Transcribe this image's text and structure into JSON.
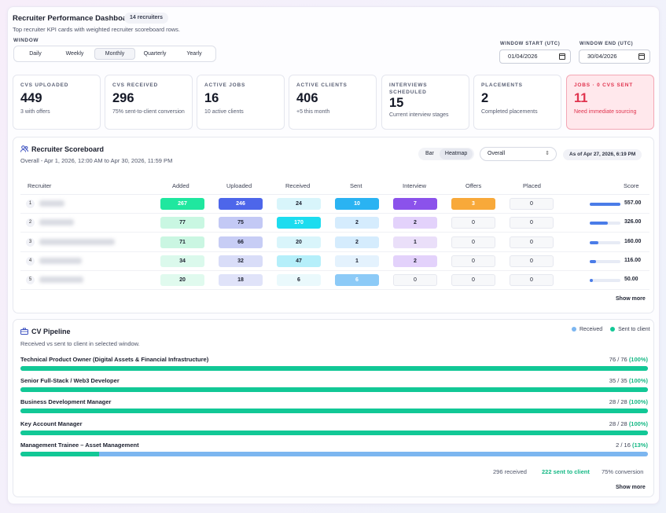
{
  "header": {
    "title": "Recruiter Performance Dashboard",
    "badge": "14 recruiters",
    "subtitle": "Top recruiter KPI cards with weighted recruiter scoreboard rows."
  },
  "window": {
    "label": "WINDOW",
    "options": [
      "Daily",
      "Weekly",
      "Monthly",
      "Quarterly",
      "Yearly"
    ],
    "selected": "Monthly"
  },
  "dates": {
    "start_label": "WINDOW START (UTC)",
    "start_value": "01/04/2026",
    "end_label": "WINDOW END (UTC)",
    "end_value": "30/04/2026"
  },
  "kpis": [
    {
      "label": "CVS UPLOADED",
      "value": "449",
      "sub": "3 with offers"
    },
    {
      "label": "CVS RECEIVED",
      "value": "296",
      "sub": "75% sent-to-client conversion"
    },
    {
      "label": "ACTIVE JOBS",
      "value": "16",
      "sub": "10 active clients"
    },
    {
      "label": "ACTIVE CLIENTS",
      "value": "406",
      "sub": "+5 this month"
    },
    {
      "label": "INTERVIEWS SCHEDULED",
      "value": "15",
      "sub": "Current interview stages"
    },
    {
      "label": "PLACEMENTS",
      "value": "2",
      "sub": "Completed placements"
    },
    {
      "label": "JOBS · 0 CVS SENT",
      "value": "11",
      "sub": "Need immediate sourcing",
      "alert": true
    }
  ],
  "scoreboard": {
    "title": "Recruiter Scoreboard",
    "subtitle": "Overall - Apr 1, 2026, 12:00 AM to Apr 30, 2026, 11:59 PM",
    "toggle": [
      "Bar",
      "Heatmap"
    ],
    "toggle_selected": "Heatmap",
    "select_value": "Overall",
    "as_of": "As of Apr 27, 2026, 6:19 PM",
    "columns": [
      "Recruiter",
      "Added",
      "Uploaded",
      "Received",
      "Sent",
      "Interview",
      "Offers",
      "Placed",
      "Score"
    ],
    "rows": [
      {
        "rank": "1",
        "cells": [
          "267",
          "246",
          "24",
          "10",
          "7",
          "3",
          "0"
        ],
        "score": "557.00",
        "score_frac": 1.0
      },
      {
        "rank": "2",
        "cells": [
          "77",
          "75",
          "170",
          "2",
          "2",
          "0",
          "0"
        ],
        "score": "326.00",
        "score_frac": 0.585
      },
      {
        "rank": "3",
        "cells": [
          "71",
          "66",
          "20",
          "2",
          "1",
          "0",
          "0"
        ],
        "score": "160.00",
        "score_frac": 0.287
      },
      {
        "rank": "4",
        "cells": [
          "34",
          "32",
          "47",
          "1",
          "2",
          "0",
          "0"
        ],
        "score": "116.00",
        "score_frac": 0.208
      },
      {
        "rank": "5",
        "cells": [
          "20",
          "18",
          "6",
          "6",
          "0",
          "0",
          "0"
        ],
        "score": "50.00",
        "score_frac": 0.09
      }
    ],
    "show_more": "Show more"
  },
  "pipeline": {
    "title": "CV Pipeline",
    "subtitle": "Received vs sent to client in selected window.",
    "legend": [
      {
        "label": "Received",
        "color": "#7cb6f0"
      },
      {
        "label": "Sent to client",
        "color": "#12c896"
      }
    ],
    "jobs": [
      {
        "name": "Technical Product Owner (Digital Assets & Financial Infrastructure)",
        "ratio": "76 / 76",
        "pct": "(100%)",
        "sent": 76,
        "received": 76
      },
      {
        "name": "Senior Full-Stack / Web3 Developer",
        "ratio": "35 / 35",
        "pct": "(100%)",
        "sent": 35,
        "received": 35
      },
      {
        "name": "Business Development Manager",
        "ratio": "28 / 28",
        "pct": "(100%)",
        "sent": 28,
        "received": 28
      },
      {
        "name": "Key Account Manager",
        "ratio": "28 / 28",
        "pct": "(100%)",
        "sent": 28,
        "received": 28
      },
      {
        "name": "Management Trainee – Asset Management",
        "ratio": "2 / 16",
        "pct": "(13%)",
        "sent": 2,
        "received": 16
      }
    ],
    "footer": {
      "received": "296 received",
      "sent": "222 sent to client",
      "conversion": "75% conversion"
    },
    "show_more": "Show more"
  },
  "colors": {
    "accent": "#12c896",
    "alert": "#e0344f",
    "score": "#4a7ce8"
  }
}
